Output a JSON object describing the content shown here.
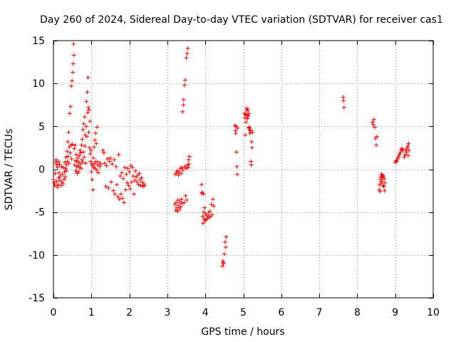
{
  "chart_data": {
    "type": "scatter",
    "title": "Day 260 of 2024, Sidereal Day-to-day VTEC variation (SDTVAR) for receiver cas1",
    "xlabel": "GPS time / hours",
    "ylabel": "SDTVAR / TECUs",
    "xlim": [
      0,
      10
    ],
    "ylim": [
      -15,
      15
    ],
    "xticks": [
      0,
      1,
      2,
      3,
      4,
      5,
      6,
      7,
      8,
      9,
      10
    ],
    "yticks": [
      -15,
      -10,
      -5,
      0,
      5,
      10,
      15
    ],
    "xtick_labels": [
      "0",
      "1",
      "2",
      "3",
      "4",
      "5",
      "6",
      "7",
      "8",
      "9",
      "10"
    ],
    "ytick_labels": [
      "-15",
      "-10",
      "-5",
      "0",
      "5",
      "10",
      "15"
    ],
    "grid": true,
    "marker": "+",
    "color": "#ff0000",
    "series": [
      {
        "name": "SDTVAR",
        "points": [
          [
            0.0,
            -1.2
          ],
          [
            0.02,
            -1.6
          ],
          [
            0.04,
            -1.9
          ],
          [
            0.05,
            -0.5
          ],
          [
            0.06,
            0.8
          ],
          [
            0.07,
            1.1
          ],
          [
            0.08,
            -1.4
          ],
          [
            0.09,
            0.5
          ],
          [
            0.1,
            -2.1
          ],
          [
            0.11,
            0.2
          ],
          [
            0.12,
            -1.8
          ],
          [
            0.13,
            0.9
          ],
          [
            0.14,
            -1.0
          ],
          [
            0.15,
            -0.4
          ],
          [
            0.16,
            0.6
          ],
          [
            0.17,
            -1.3
          ],
          [
            0.18,
            -0.8
          ],
          [
            0.2,
            -1.9
          ],
          [
            0.21,
            0.3
          ],
          [
            0.22,
            -1.5
          ],
          [
            0.24,
            -0.6
          ],
          [
            0.25,
            -1.7
          ],
          [
            0.26,
            0.2
          ],
          [
            0.28,
            -1.2
          ],
          [
            0.29,
            -0.3
          ],
          [
            0.3,
            0.8
          ],
          [
            0.31,
            -0.9
          ],
          [
            0.32,
            0.1
          ],
          [
            0.33,
            1.4
          ],
          [
            0.34,
            -0.2
          ],
          [
            0.35,
            0.5
          ],
          [
            0.36,
            2.1
          ],
          [
            0.37,
            0.9
          ],
          [
            0.38,
            3.2
          ],
          [
            0.39,
            1.5
          ],
          [
            0.4,
            4.3
          ],
          [
            0.41,
            0.7
          ],
          [
            0.42,
            2.6
          ],
          [
            0.43,
            6.5
          ],
          [
            0.44,
            1.9
          ],
          [
            0.45,
            7.3
          ],
          [
            0.46,
            2.8
          ],
          [
            0.47,
            9.7
          ],
          [
            0.48,
            1.2
          ],
          [
            0.49,
            10.3
          ],
          [
            0.5,
            2.9
          ],
          [
            0.51,
            11.3
          ],
          [
            0.52,
            12.3
          ],
          [
            0.53,
            14.6
          ],
          [
            0.54,
            13.3
          ],
          [
            0.55,
            2.4
          ],
          [
            0.56,
            0.5
          ],
          [
            0.57,
            2.8
          ],
          [
            0.58,
            1.0
          ],
          [
            0.59,
            -0.2
          ],
          [
            0.6,
            1.7
          ],
          [
            0.61,
            0.3
          ],
          [
            0.62,
            0.9
          ],
          [
            0.63,
            -0.5
          ],
          [
            0.64,
            1.3
          ],
          [
            0.65,
            0.4
          ],
          [
            0.66,
            -0.3
          ],
          [
            0.67,
            0.8
          ],
          [
            0.68,
            1.6
          ],
          [
            0.69,
            0.2
          ],
          [
            0.7,
            2.2
          ],
          [
            0.71,
            0.6
          ],
          [
            0.72,
            1.9
          ],
          [
            0.73,
            0.1
          ],
          [
            0.74,
            2.8
          ],
          [
            0.75,
            1.1
          ],
          [
            0.76,
            3.5
          ],
          [
            0.77,
            0.8
          ],
          [
            0.78,
            4.6
          ],
          [
            0.79,
            2.0
          ],
          [
            0.8,
            5.3
          ],
          [
            0.81,
            1.4
          ],
          [
            0.82,
            6.1
          ],
          [
            0.83,
            2.7
          ],
          [
            0.84,
            4.0
          ],
          [
            0.85,
            0.7
          ],
          [
            0.86,
            5.0
          ],
          [
            0.87,
            7.9
          ],
          [
            0.88,
            3.8
          ],
          [
            0.89,
            9.0
          ],
          [
            0.9,
            6.6
          ],
          [
            0.91,
            10.7
          ],
          [
            0.92,
            7.2
          ],
          [
            0.93,
            4.3
          ],
          [
            0.94,
            6.9
          ],
          [
            0.95,
            2.5
          ],
          [
            0.96,
            5.6
          ],
          [
            0.97,
            1.8
          ],
          [
            0.98,
            0.9
          ],
          [
            0.99,
            2.2
          ],
          [
            1.0,
            -0.3
          ],
          [
            1.01,
            0.6
          ],
          [
            1.02,
            -1.2
          ],
          [
            1.03,
            0.4
          ],
          [
            1.04,
            -2.4
          ],
          [
            1.05,
            1.3
          ],
          [
            1.06,
            0.2
          ],
          [
            1.07,
            2.6
          ],
          [
            1.08,
            0.7
          ],
          [
            1.09,
            3.4
          ],
          [
            1.1,
            0.1
          ],
          [
            1.11,
            4.2
          ],
          [
            1.12,
            0.9
          ],
          [
            1.13,
            3.0
          ],
          [
            1.14,
            -0.1
          ],
          [
            1.15,
            4.9
          ],
          [
            1.16,
            0.5
          ],
          [
            1.18,
            -0.4
          ],
          [
            1.2,
            0.8
          ],
          [
            1.22,
            0.3
          ],
          [
            1.25,
            0.6
          ],
          [
            1.3,
            2.2
          ],
          [
            1.33,
            1.9
          ],
          [
            1.35,
            0.7
          ],
          [
            1.38,
            -2.0
          ],
          [
            1.4,
            0.4
          ],
          [
            1.42,
            1.2
          ],
          [
            1.45,
            -2.2
          ],
          [
            1.48,
            0.9
          ],
          [
            1.5,
            1.3
          ],
          [
            1.52,
            -1.5
          ],
          [
            1.55,
            0.6
          ],
          [
            1.58,
            -2.5
          ],
          [
            1.6,
            1.1
          ],
          [
            1.62,
            -2.9
          ],
          [
            1.65,
            0.3
          ],
          [
            1.67,
            -1.8
          ],
          [
            1.7,
            -3.2
          ],
          [
            1.72,
            1.7
          ],
          [
            1.74,
            -3.5
          ],
          [
            1.76,
            -0.8
          ],
          [
            1.78,
            -2.9
          ],
          [
            1.8,
            -0.4
          ],
          [
            1.82,
            -3.4
          ],
          [
            1.84,
            -1.1
          ],
          [
            1.86,
            -3.9
          ],
          [
            1.88,
            0.2
          ],
          [
            1.9,
            -2.4
          ],
          [
            1.92,
            -0.6
          ],
          [
            1.94,
            -1.6
          ],
          [
            1.96,
            0.1
          ],
          [
            1.98,
            -1.9
          ],
          [
            2.0,
            -0.3
          ],
          [
            2.02,
            -2.3
          ],
          [
            2.04,
            0.4
          ],
          [
            2.06,
            -1.5
          ],
          [
            2.08,
            0.2
          ],
          [
            2.1,
            -0.8
          ],
          [
            2.12,
            -2.9
          ],
          [
            2.14,
            -1.3
          ],
          [
            2.16,
            -0.2
          ],
          [
            2.18,
            -0.9
          ],
          [
            2.2,
            -1.5
          ],
          [
            2.22,
            -0.7
          ],
          [
            2.24,
            -1.8
          ],
          [
            2.26,
            -0.5
          ],
          [
            2.28,
            -1.2
          ],
          [
            2.3,
            -1.9
          ],
          [
            2.32,
            -1.0
          ],
          [
            2.34,
            -1.5
          ],
          [
            2.36,
            -2.0
          ],
          [
            2.38,
            -1.7
          ],
          [
            2.4,
            -1.9
          ],
          [
            3.2,
            -4.1
          ],
          [
            3.21,
            -0.6
          ],
          [
            3.22,
            -4.8
          ],
          [
            3.23,
            -3.9
          ],
          [
            3.24,
            -0.4
          ],
          [
            3.25,
            -4.5
          ],
          [
            3.26,
            -0.2
          ],
          [
            3.27,
            -4.9
          ],
          [
            3.28,
            -3.6
          ],
          [
            3.29,
            -0.7
          ],
          [
            3.3,
            -4.2
          ],
          [
            3.31,
            -0.3
          ],
          [
            3.32,
            -4.7
          ],
          [
            3.33,
            -3.8
          ],
          [
            3.34,
            0.1
          ],
          [
            3.35,
            -4.4
          ],
          [
            3.36,
            -0.5
          ],
          [
            3.37,
            -3.5
          ],
          [
            3.38,
            0.2
          ],
          [
            3.39,
            -4.0
          ],
          [
            3.4,
            6.7
          ],
          [
            3.41,
            -0.1
          ],
          [
            3.42,
            7.5
          ],
          [
            3.43,
            8.1
          ],
          [
            3.44,
            -3.9
          ],
          [
            3.45,
            9.8
          ],
          [
            3.46,
            0.3
          ],
          [
            3.47,
            10.4
          ],
          [
            3.48,
            -3.1
          ],
          [
            3.49,
            0.1
          ],
          [
            3.5,
            13.0
          ],
          [
            3.51,
            -3.6
          ],
          [
            3.52,
            13.5
          ],
          [
            3.53,
            0.5
          ],
          [
            3.54,
            14.1
          ],
          [
            3.55,
            0.2
          ],
          [
            3.56,
            1.1
          ],
          [
            3.57,
            0.6
          ],
          [
            3.58,
            1.5
          ],
          [
            3.9,
            -1.8
          ],
          [
            3.91,
            -2.8
          ],
          [
            3.92,
            -2.7
          ],
          [
            3.93,
            -5.5
          ],
          [
            3.94,
            -6.3
          ],
          [
            3.95,
            -2.9
          ],
          [
            3.96,
            -5.0
          ],
          [
            3.97,
            -5.8
          ],
          [
            3.98,
            -4.5
          ],
          [
            3.99,
            -6.0
          ],
          [
            4.0,
            -5.2
          ],
          [
            4.02,
            -5.9
          ],
          [
            4.04,
            -5.4
          ],
          [
            4.06,
            -5.7
          ],
          [
            4.08,
            -5.1
          ],
          [
            4.1,
            -5.6
          ],
          [
            4.12,
            -4.9
          ],
          [
            4.14,
            -5.5
          ],
          [
            4.16,
            -4.1
          ],
          [
            4.18,
            -5.3
          ],
          [
            4.2,
            -3.5
          ],
          [
            4.22,
            -4.3
          ],
          [
            4.45,
            -11.3
          ],
          [
            4.46,
            -10.7
          ],
          [
            4.47,
            -10.9
          ],
          [
            4.48,
            -11.0
          ],
          [
            4.5,
            -9.9
          ],
          [
            4.52,
            -8.5
          ],
          [
            4.54,
            -9.1
          ],
          [
            4.55,
            -7.9
          ],
          [
            4.78,
            5.1
          ],
          [
            4.79,
            4.5
          ],
          [
            4.8,
            4.2
          ],
          [
            4.81,
            5.0
          ],
          [
            4.82,
            2.0
          ],
          [
            4.83,
            0.3
          ],
          [
            4.84,
            -0.6
          ],
          [
            4.85,
            4.8
          ],
          [
            5.03,
            6.5
          ],
          [
            5.04,
            6.0
          ],
          [
            5.05,
            4.0
          ],
          [
            5.06,
            6.4
          ],
          [
            5.07,
            5.5
          ],
          [
            5.08,
            7.1
          ],
          [
            5.09,
            6.3
          ],
          [
            5.1,
            6.8
          ],
          [
            5.11,
            5.9
          ],
          [
            5.12,
            7.0
          ],
          [
            5.13,
            6.2
          ],
          [
            5.14,
            4.8
          ],
          [
            5.15,
            6.5
          ],
          [
            5.16,
            4.9
          ],
          [
            5.17,
            4.2
          ],
          [
            5.18,
            4.5
          ],
          [
            5.19,
            4.6
          ],
          [
            5.2,
            0.9
          ],
          [
            5.21,
            0.5
          ],
          [
            5.22,
            3.2
          ],
          [
            5.23,
            2.5
          ],
          [
            5.24,
            4.3
          ],
          [
            7.63,
            8.4
          ],
          [
            7.64,
            8.0
          ],
          [
            7.65,
            7.2
          ],
          [
            8.4,
            5.5
          ],
          [
            8.42,
            5.2
          ],
          [
            8.44,
            5.8
          ],
          [
            8.46,
            4.9
          ],
          [
            8.48,
            3.6
          ],
          [
            8.5,
            2.8
          ],
          [
            8.52,
            3.8
          ],
          [
            8.58,
            -2.4
          ],
          [
            8.59,
            -1.8
          ],
          [
            8.6,
            -2.6
          ],
          [
            8.61,
            -1.2
          ],
          [
            8.62,
            -0.9
          ],
          [
            8.63,
            -1.6
          ],
          [
            8.64,
            -0.6
          ],
          [
            8.65,
            -1.4
          ],
          [
            8.66,
            -0.7
          ],
          [
            8.67,
            -1.0
          ],
          [
            8.68,
            -1.9
          ],
          [
            8.69,
            -0.8
          ],
          [
            8.7,
            -2.0
          ],
          [
            8.71,
            -1.1
          ],
          [
            8.72,
            -2.5
          ],
          [
            8.73,
            -1.6
          ],
          [
            9.0,
            0.8
          ],
          [
            9.02,
            1.0
          ],
          [
            9.04,
            0.9
          ],
          [
            9.06,
            1.2
          ],
          [
            9.08,
            1.4
          ],
          [
            9.1,
            1.6
          ],
          [
            9.12,
            1.8
          ],
          [
            9.14,
            2.0
          ],
          [
            9.16,
            2.3
          ],
          [
            9.18,
            2.4
          ],
          [
            9.2,
            2.2
          ],
          [
            9.24,
            1.4
          ],
          [
            9.26,
            1.7
          ],
          [
            9.28,
            2.3
          ],
          [
            9.3,
            2.0
          ],
          [
            9.32,
            2.5
          ],
          [
            9.33,
            2.7
          ],
          [
            9.34,
            1.6
          ],
          [
            9.35,
            3.0
          ],
          [
            9.36,
            2.2
          ]
        ]
      }
    ]
  }
}
